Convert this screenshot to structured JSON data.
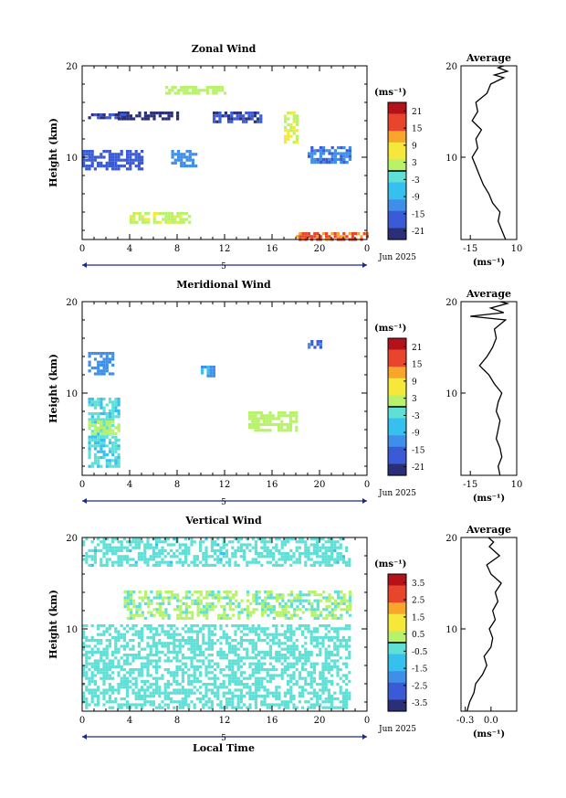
{
  "figure": {
    "date_label": "Jun 2025",
    "day_marker": "5",
    "xlabel": "Local Time",
    "colorbar_unit": "(ms⁻¹)",
    "profile_title": "Average"
  },
  "chart_data": [
    {
      "type": "heatmap",
      "title": "Zonal Wind",
      "ylabel": "Height (km)",
      "x_ticks": [
        "0",
        "4",
        "8",
        "12",
        "16",
        "20",
        "0"
      ],
      "xlim": [
        0,
        24
      ],
      "y_ticks": [
        "20",
        "10"
      ],
      "ylim": [
        1,
        20
      ],
      "colorbar": {
        "ticks": [
          "21",
          "15",
          "9",
          "3",
          "-3",
          "-9",
          "-15",
          "-21"
        ],
        "range": [
          -24,
          24
        ]
      },
      "profile": {
        "x_ticks": [
          "-15",
          "10"
        ],
        "xlim": [
          -20,
          10
        ],
        "unit": "(ms⁻¹)"
      },
      "features": [
        {
          "x0": 0,
          "x1": 5,
          "y0": 8.8,
          "y1": 10.8,
          "value": -17
        },
        {
          "x0": 7.5,
          "x1": 9.5,
          "y0": 9.2,
          "y1": 10.8,
          "value": -12
        },
        {
          "x0": 3,
          "x1": 8,
          "y0": 14.2,
          "y1": 15.0,
          "value": -22
        },
        {
          "x0": 0.5,
          "x1": 3.5,
          "y0": 14.2,
          "y1": 14.8,
          "value": -20
        },
        {
          "x0": 11,
          "x1": 15,
          "y0": 14.0,
          "y1": 15.0,
          "value": -19
        },
        {
          "x0": 19,
          "x1": 22.5,
          "y0": 9.5,
          "y1": 11.2,
          "value": -14
        },
        {
          "x0": 17,
          "x1": 18,
          "y0": 11.5,
          "y1": 15.0,
          "value": 5
        },
        {
          "x0": 4,
          "x1": 9,
          "y0": 3.0,
          "y1": 4.0,
          "value": 4
        },
        {
          "x0": 18,
          "x1": 24,
          "y0": 1.0,
          "y1": 1.8,
          "value": 15
        },
        {
          "x0": 7,
          "x1": 12,
          "y0": 17.0,
          "y1": 17.8,
          "value": 3
        }
      ],
      "profile_values": [
        [
          1,
          4
        ],
        [
          2,
          2
        ],
        [
          3,
          0
        ],
        [
          4,
          1
        ],
        [
          5,
          -3
        ],
        [
          6,
          -5
        ],
        [
          7,
          -8
        ],
        [
          8,
          -10
        ],
        [
          9,
          -12
        ],
        [
          10,
          -14
        ],
        [
          11,
          -11
        ],
        [
          12,
          -12
        ],
        [
          13,
          -9
        ],
        [
          14,
          -14
        ],
        [
          15,
          -11
        ],
        [
          16,
          -12
        ],
        [
          17,
          -6
        ],
        [
          18,
          -4
        ],
        [
          18.7,
          3
        ],
        [
          19,
          -2
        ],
        [
          19.4,
          5
        ],
        [
          19.8,
          0
        ],
        [
          20,
          3
        ]
      ]
    },
    {
      "type": "heatmap",
      "title": "Meridional Wind",
      "ylabel": "Height (km)",
      "x_ticks": [
        "0",
        "4",
        "8",
        "12",
        "16",
        "20",
        "0"
      ],
      "xlim": [
        0,
        24
      ],
      "y_ticks": [
        "20",
        "10"
      ],
      "ylim": [
        1,
        20
      ],
      "colorbar": {
        "ticks": [
          "21",
          "15",
          "9",
          "3",
          "-3",
          "-9",
          "-15",
          "-21"
        ],
        "range": [
          -24,
          24
        ]
      },
      "profile": {
        "x_ticks": [
          "-15",
          "10"
        ],
        "xlim": [
          -20,
          10
        ],
        "unit": "(ms⁻¹)"
      },
      "features": [
        {
          "x0": 0.5,
          "x1": 3,
          "y0": 2,
          "y1": 9.5,
          "value": -4
        },
        {
          "x0": 0.5,
          "x1": 3,
          "y0": 5.5,
          "y1": 7,
          "value": 2
        },
        {
          "x0": 0.5,
          "x1": 2.5,
          "y0": 12,
          "y1": 14.5,
          "value": -12
        },
        {
          "x0": 10,
          "x1": 11,
          "y0": 12,
          "y1": 13,
          "value": -10
        },
        {
          "x0": 19,
          "x1": 20,
          "y0": 15,
          "y1": 15.8,
          "value": -15
        },
        {
          "x0": 14,
          "x1": 18,
          "y0": 6,
          "y1": 8,
          "value": 2
        }
      ],
      "profile_values": [
        [
          1,
          1
        ],
        [
          2,
          0
        ],
        [
          3,
          2
        ],
        [
          4,
          1
        ],
        [
          5,
          -1
        ],
        [
          6,
          0
        ],
        [
          7,
          1
        ],
        [
          8,
          -1
        ],
        [
          9,
          0
        ],
        [
          10,
          2
        ],
        [
          11,
          -2
        ],
        [
          12,
          -5
        ],
        [
          13,
          -10
        ],
        [
          14,
          -6
        ],
        [
          15,
          -3
        ],
        [
          16,
          -1
        ],
        [
          17,
          -2
        ],
        [
          18,
          4
        ],
        [
          18.4,
          -15
        ],
        [
          18.8,
          3
        ],
        [
          19.3,
          -4
        ],
        [
          19.8,
          5
        ],
        [
          20,
          1
        ]
      ]
    },
    {
      "type": "heatmap",
      "title": "Vertical Wind",
      "ylabel": "Height (km)",
      "x_ticks": [
        "0",
        "4",
        "8",
        "12",
        "16",
        "20",
        "0"
      ],
      "xlim": [
        0,
        24
      ],
      "y_ticks": [
        "20",
        "10"
      ],
      "ylim": [
        1,
        20
      ],
      "colorbar": {
        "ticks": [
          "3.5",
          "2.5",
          "1.5",
          "0.5",
          "-0.5",
          "-1.5",
          "-2.5",
          "-3.5"
        ],
        "range": [
          -4,
          4
        ]
      },
      "profile": {
        "x_ticks": [
          "-0.3",
          "0.0"
        ],
        "xlim": [
          -0.35,
          0.3
        ],
        "unit": "(ms⁻¹)"
      },
      "features": [
        {
          "x0": 0,
          "x1": 22.5,
          "y0": 1.5,
          "y1": 10.5,
          "value": -0.4
        },
        {
          "x0": 3.5,
          "x1": 22.5,
          "y0": 11.2,
          "y1": 14.2,
          "value": 0.1
        },
        {
          "x0": 0,
          "x1": 22.5,
          "y0": 17,
          "y1": 20,
          "value": -0.5
        }
      ],
      "profile_values": [
        [
          1,
          -0.28
        ],
        [
          2,
          -0.25
        ],
        [
          3,
          -0.2
        ],
        [
          4,
          -0.18
        ],
        [
          5,
          -0.1
        ],
        [
          6,
          -0.05
        ],
        [
          7,
          -0.08
        ],
        [
          8,
          0.0
        ],
        [
          9,
          0.02
        ],
        [
          10,
          -0.02
        ],
        [
          11,
          0.05
        ],
        [
          12,
          0.02
        ],
        [
          13,
          0.08
        ],
        [
          14,
          0.05
        ],
        [
          15,
          0.12
        ],
        [
          16,
          0.0
        ],
        [
          17,
          -0.05
        ],
        [
          18,
          0.1
        ],
        [
          19,
          -0.02
        ],
        [
          19.5,
          0.03
        ],
        [
          20,
          -0.03
        ]
      ]
    }
  ]
}
